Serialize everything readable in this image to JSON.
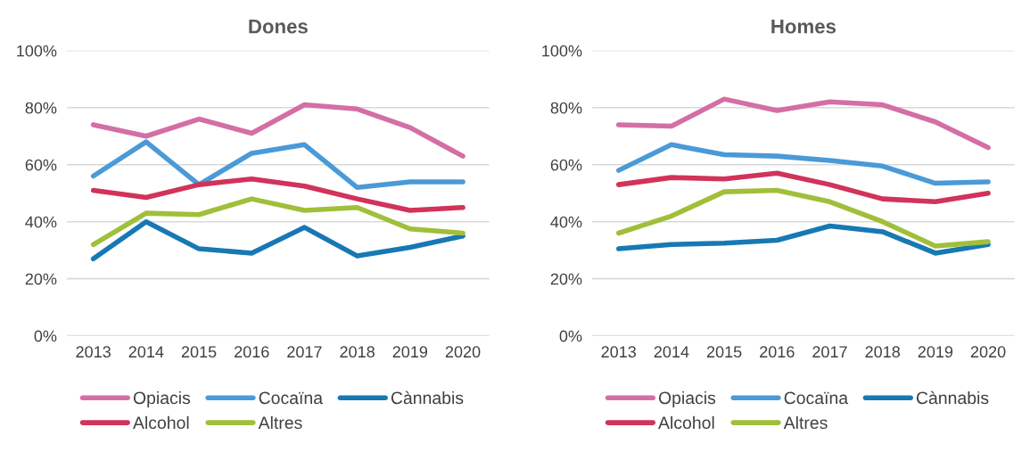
{
  "chart_data": [
    {
      "type": "line",
      "title": "Dones",
      "categories": [
        "2013",
        "2014",
        "2015",
        "2016",
        "2017",
        "2018",
        "2019",
        "2020"
      ],
      "ylim": [
        0,
        100
      ],
      "yticks": [
        {
          "value": 0,
          "label": "0%"
        },
        {
          "value": 20,
          "label": "20%"
        },
        {
          "value": 40,
          "label": "40%"
        },
        {
          "value": 60,
          "label": "60%"
        },
        {
          "value": 80,
          "label": "80%"
        },
        {
          "value": 100,
          "label": "100%"
        }
      ],
      "grid": "y",
      "legend": "bottom",
      "marker": "none",
      "series": [
        {
          "name": "Opiacis",
          "color": "#d36fa4",
          "values": [
            74,
            70,
            76,
            71,
            81,
            79.5,
            73,
            63
          ]
        },
        {
          "name": "Cocaïna",
          "color": "#4a9ad8",
          "values": [
            56,
            68,
            53,
            64,
            67,
            52,
            54,
            54
          ]
        },
        {
          "name": "Cànnabis",
          "color": "#1778b4",
          "values": [
            27,
            40,
            30.5,
            29,
            38,
            28,
            31,
            35
          ]
        },
        {
          "name": "Alcohol",
          "color": "#d1335a",
          "values": [
            51,
            48.5,
            53,
            55,
            52.5,
            48,
            44,
            45
          ]
        },
        {
          "name": "Altres",
          "color": "#a0bf3a",
          "values": [
            32,
            43,
            42.5,
            48,
            44,
            45,
            37.5,
            36
          ]
        }
      ]
    },
    {
      "type": "line",
      "title": "Homes",
      "categories": [
        "2013",
        "2014",
        "2015",
        "2016",
        "2017",
        "2018",
        "2019",
        "2020"
      ],
      "ylim": [
        0,
        100
      ],
      "yticks": [
        {
          "value": 0,
          "label": "0%"
        },
        {
          "value": 20,
          "label": "20%"
        },
        {
          "value": 40,
          "label": "40%"
        },
        {
          "value": 60,
          "label": "60%"
        },
        {
          "value": 80,
          "label": "80%"
        },
        {
          "value": 100,
          "label": "100%"
        }
      ],
      "grid": "y",
      "legend": "bottom",
      "marker": "none",
      "series": [
        {
          "name": "Opiacis",
          "color": "#d36fa4",
          "values": [
            74,
            73.5,
            83,
            79,
            82,
            81,
            75,
            66
          ]
        },
        {
          "name": "Cocaïna",
          "color": "#4a9ad8",
          "values": [
            58,
            67,
            63.5,
            63,
            61.5,
            59.5,
            53.5,
            54
          ]
        },
        {
          "name": "Cànnabis",
          "color": "#1778b4",
          "values": [
            30.5,
            32,
            32.5,
            33.5,
            38.5,
            36.5,
            29,
            32
          ]
        },
        {
          "name": "Alcohol",
          "color": "#d1335a",
          "values": [
            53,
            55.5,
            55,
            57,
            53,
            48,
            47,
            50
          ]
        },
        {
          "name": "Altres",
          "color": "#a0bf3a",
          "values": [
            36,
            42,
            50.5,
            51,
            47,
            40,
            31.5,
            33
          ]
        }
      ]
    }
  ]
}
